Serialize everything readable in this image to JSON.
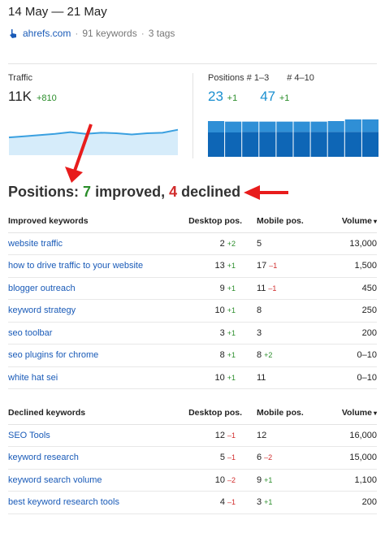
{
  "header": {
    "date_range": "14 May — 21 May",
    "site": "ahrefs.com",
    "keywords": "91 keywords",
    "tags": "3 tags",
    "separator": "·"
  },
  "traffic": {
    "label": "Traffic",
    "value": "11K",
    "delta": "+810",
    "series": [
      3,
      3.2,
      3.4,
      3.6,
      3.9,
      3.6,
      3.8,
      3.7,
      3.5,
      3.7,
      3.8,
      4.3
    ]
  },
  "positions": {
    "label_top": "Positions # 1–3",
    "label_mid": "# 4–10",
    "top_value": "23",
    "top_delta": "+1",
    "mid_value": "47",
    "mid_delta": "+1",
    "bars_top3": [
      21,
      20,
      19,
      19,
      19,
      19,
      19,
      20,
      23,
      23
    ],
    "bars_4to10": [
      45,
      45,
      46,
      46,
      46,
      46,
      46,
      46,
      46,
      46
    ]
  },
  "headline": {
    "prefix": "Positions:",
    "improved_count": "7",
    "improved_word": "improved,",
    "declined_count": "4",
    "declined_word": "declined"
  },
  "improved": {
    "headers": {
      "keyword": "Improved keywords",
      "desktop": "Desktop pos.",
      "mobile": "Mobile pos.",
      "volume": "Volume",
      "sort_icon": "▾"
    },
    "rows": [
      {
        "keyword": "website traffic",
        "desktop": "2",
        "desktop_delta": "+2",
        "desktop_dir": "up",
        "mobile": "5",
        "mobile_delta": "",
        "mobile_dir": "",
        "volume": "13,000"
      },
      {
        "keyword": "how to drive traffic to your website",
        "desktop": "13",
        "desktop_delta": "+1",
        "desktop_dir": "up",
        "mobile": "17",
        "mobile_delta": "–1",
        "mobile_dir": "down",
        "volume": "1,500"
      },
      {
        "keyword": "blogger outreach",
        "desktop": "9",
        "desktop_delta": "+1",
        "desktop_dir": "up",
        "mobile": "11",
        "mobile_delta": "–1",
        "mobile_dir": "down",
        "volume": "450"
      },
      {
        "keyword": "keyword strategy",
        "desktop": "10",
        "desktop_delta": "+1",
        "desktop_dir": "up",
        "mobile": "8",
        "mobile_delta": "",
        "mobile_dir": "",
        "volume": "250"
      },
      {
        "keyword": "seo toolbar",
        "desktop": "3",
        "desktop_delta": "+1",
        "desktop_dir": "up",
        "mobile": "3",
        "mobile_delta": "",
        "mobile_dir": "",
        "volume": "200"
      },
      {
        "keyword": "seo plugins for chrome",
        "desktop": "8",
        "desktop_delta": "+1",
        "desktop_dir": "up",
        "mobile": "8",
        "mobile_delta": "+2",
        "mobile_dir": "up",
        "volume": "0–10"
      },
      {
        "keyword": "white hat sei",
        "desktop": "10",
        "desktop_delta": "+1",
        "desktop_dir": "up",
        "mobile": "11",
        "mobile_delta": "",
        "mobile_dir": "",
        "volume": "0–10"
      }
    ]
  },
  "declined": {
    "headers": {
      "keyword": "Declined keywords",
      "desktop": "Desktop pos.",
      "mobile": "Mobile pos.",
      "volume": "Volume",
      "sort_icon": "▾"
    },
    "rows": [
      {
        "keyword": "SEO Tools",
        "desktop": "12",
        "desktop_delta": "–1",
        "desktop_dir": "down",
        "mobile": "12",
        "mobile_delta": "",
        "mobile_dir": "",
        "volume": "16,000"
      },
      {
        "keyword": "keyword research",
        "desktop": "5",
        "desktop_delta": "–1",
        "desktop_dir": "down",
        "mobile": "6",
        "mobile_delta": "–2",
        "mobile_dir": "down",
        "volume": "15,000"
      },
      {
        "keyword": "keyword search volume",
        "desktop": "10",
        "desktop_delta": "–2",
        "desktop_dir": "down",
        "mobile": "9",
        "mobile_delta": "+1",
        "mobile_dir": "up",
        "volume": "1,100"
      },
      {
        "keyword": "best keyword research tools",
        "desktop": "4",
        "desktop_delta": "–1",
        "desktop_dir": "down",
        "mobile": "3",
        "mobile_delta": "+1",
        "mobile_dir": "up",
        "volume": "200"
      }
    ]
  },
  "colors": {
    "link": "#1a5bb8",
    "up": "#2a8d2a",
    "down": "#d12b2b",
    "traffic_line": "#3aa0e0",
    "traffic_fill": "#d6ecfa",
    "bar_top": "#2f8fd6",
    "bar_bottom": "#0e66b6",
    "annotation_arrow": "#e81c1c"
  }
}
